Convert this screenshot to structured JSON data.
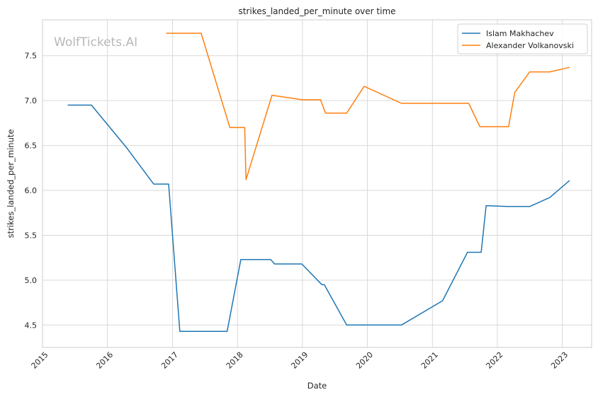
{
  "chart_data": {
    "type": "line",
    "title": "strikes_landed_per_minute over time",
    "xlabel": "Date",
    "ylabel": "strikes_landed_per_minute",
    "watermark": "WolfTickets.AI",
    "xlim": [
      "2015-01-01",
      "2023-06-15"
    ],
    "ylim": [
      4.25,
      7.9
    ],
    "x_ticks": [
      "2015-01-01",
      "2016-01-01",
      "2017-01-01",
      "2018-01-01",
      "2019-01-01",
      "2020-01-01",
      "2021-01-01",
      "2022-01-01",
      "2023-01-01"
    ],
    "x_tick_labels": [
      "2015",
      "2016",
      "2017",
      "2018",
      "2019",
      "2020",
      "2021",
      "2022",
      "2023"
    ],
    "y_ticks": [
      4.5,
      5.0,
      5.5,
      6.0,
      6.5,
      7.0,
      7.5
    ],
    "y_tick_labels": [
      "4.5",
      "5.0",
      "5.5",
      "6.0",
      "6.5",
      "7.0",
      "7.5"
    ],
    "grid": true,
    "legend_position": "top-right",
    "series": [
      {
        "name": "Islam Makhachev",
        "color": "#1f77b4",
        "points": [
          [
            "2015-05-23",
            6.95
          ],
          [
            "2015-10-03",
            6.95
          ],
          [
            "2016-04-16",
            6.48
          ],
          [
            "2016-09-17",
            6.07
          ],
          [
            "2016-12-10",
            6.07
          ],
          [
            "2017-02-11",
            4.43
          ],
          [
            "2017-11-04",
            4.43
          ],
          [
            "2018-01-20",
            5.23
          ],
          [
            "2018-07-07",
            5.23
          ],
          [
            "2018-07-28",
            5.18
          ],
          [
            "2018-12-29",
            5.18
          ],
          [
            "2019-04-20",
            4.95
          ],
          [
            "2019-05-04",
            4.95
          ],
          [
            "2019-09-07",
            4.5
          ],
          [
            "2020-07-11",
            4.5
          ],
          [
            "2021-02-27",
            4.77
          ],
          [
            "2021-07-17",
            5.31
          ],
          [
            "2021-10-02",
            5.31
          ],
          [
            "2021-10-30",
            5.83
          ],
          [
            "2022-02-26",
            5.82
          ],
          [
            "2022-07-02",
            5.82
          ],
          [
            "2022-10-22",
            5.92
          ],
          [
            "2023-02-11",
            6.11
          ]
        ]
      },
      {
        "name": "Alexander Volkanovski",
        "color": "#ff7f0e",
        "points": [
          [
            "2016-11-26",
            7.75
          ],
          [
            "2017-06-11",
            7.75
          ],
          [
            "2017-11-19",
            6.7
          ],
          [
            "2018-02-11",
            6.7
          ],
          [
            "2018-02-18",
            6.12
          ],
          [
            "2018-07-14",
            7.06
          ],
          [
            "2018-12-29",
            7.01
          ],
          [
            "2019-04-13",
            7.01
          ],
          [
            "2019-05-11",
            6.86
          ],
          [
            "2019-09-07",
            6.86
          ],
          [
            "2019-12-14",
            7.16
          ],
          [
            "2020-07-11",
            6.97
          ],
          [
            "2021-07-24",
            6.97
          ],
          [
            "2021-09-25",
            6.71
          ],
          [
            "2022-03-05",
            6.71
          ],
          [
            "2022-04-09",
            7.09
          ],
          [
            "2022-07-02",
            7.32
          ],
          [
            "2022-10-22",
            7.32
          ],
          [
            "2023-02-11",
            7.37
          ]
        ]
      }
    ]
  }
}
